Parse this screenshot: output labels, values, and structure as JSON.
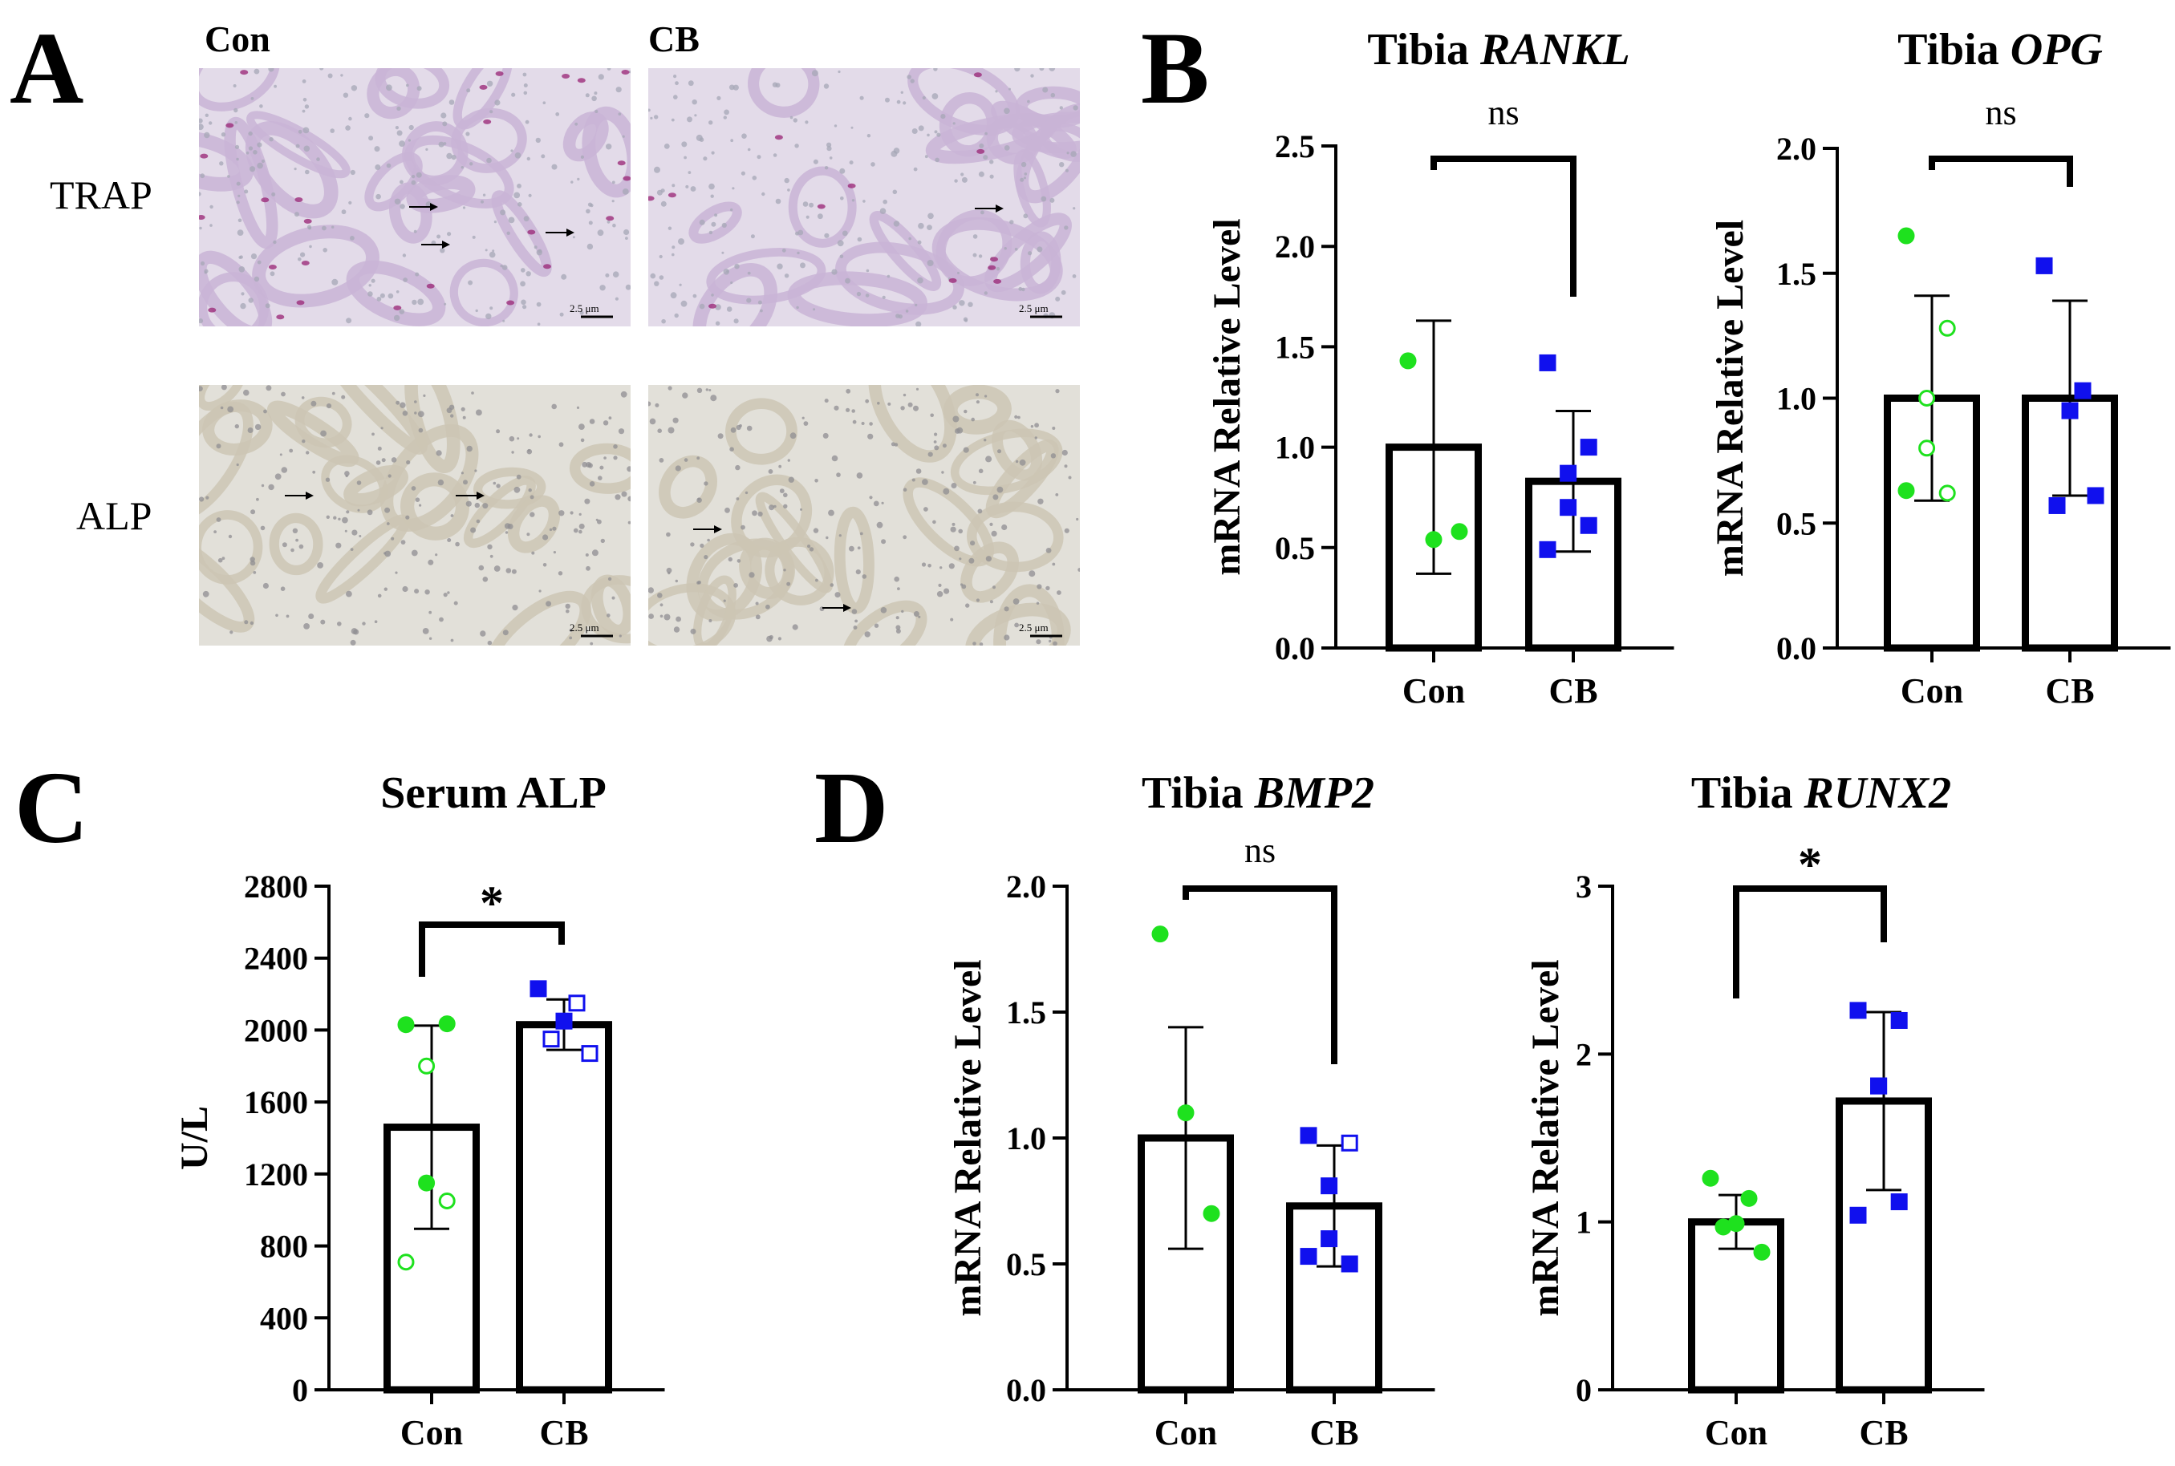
{
  "panel_labels": {
    "a": "A",
    "b": "B",
    "c": "C",
    "d": "D"
  },
  "histology": {
    "columns": [
      "Con",
      "CB"
    ],
    "rows": [
      "TRAP",
      "ALP"
    ],
    "scale_bar": "2.5 μm",
    "colors": {
      "trap_bg": "#e3dbe9",
      "trap_tissue": "#c9b4d6",
      "trap_cells": "#a5a7b6",
      "trap_osteoclast": "#9c2d7a",
      "alp_bg": "#e2e0d9",
      "alp_tissue": "#cdc6b4",
      "alp_cells": "#8f8e92"
    }
  },
  "colors": {
    "con": "#1ee11e",
    "cb": "#1010ee",
    "axis": "#000000"
  },
  "chart_data": [
    {
      "id": "rankl",
      "type": "bar",
      "title": "Tibia ",
      "title_italic": "RANKL",
      "ylabel": "mRNA Relative Level",
      "xlabel": "",
      "categories": [
        "Con",
        "CB"
      ],
      "ylim": [
        0,
        2.5
      ],
      "yticks": [
        "0.0",
        "0.5",
        "1.0",
        "1.5",
        "2.0",
        "2.5"
      ],
      "means": [
        1.0,
        0.83
      ],
      "sd": [
        0.63,
        0.35
      ],
      "points": [
        [
          {
            "y": 1.43,
            "open": false
          },
          {
            "y": 0.54,
            "open": false
          },
          {
            "y": 0.58,
            "open": false
          }
        ],
        [
          {
            "y": 1.42,
            "open": false
          },
          {
            "y": 1.0,
            "open": false
          },
          {
            "y": 0.87,
            "open": false
          },
          {
            "y": 0.7,
            "open": false
          },
          {
            "y": 0.61,
            "open": false
          },
          {
            "y": 0.49,
            "open": false
          }
        ]
      ],
      "significance": "ns"
    },
    {
      "id": "opg",
      "type": "bar",
      "title": "Tibia ",
      "title_italic": "OPG",
      "ylabel": "mRNA Relative Level",
      "xlabel": "",
      "categories": [
        "Con",
        "CB"
      ],
      "ylim": [
        0,
        2.0
      ],
      "yticks": [
        "0.0",
        "0.5",
        "1.0",
        "1.5",
        "2.0"
      ],
      "means": [
        1.0,
        1.0
      ],
      "sd": [
        0.41,
        0.39
      ],
      "points": [
        [
          {
            "y": 1.65,
            "open": false
          },
          {
            "y": 1.28,
            "open": true
          },
          {
            "y": 1.0,
            "open": true
          },
          {
            "y": 0.8,
            "open": true
          },
          {
            "y": 0.62,
            "open": true
          },
          {
            "y": 0.63,
            "open": false
          }
        ],
        [
          {
            "y": 1.53,
            "open": false
          },
          {
            "y": 1.03,
            "open": false
          },
          {
            "y": 0.95,
            "open": false
          },
          {
            "y": 0.57,
            "open": false
          },
          {
            "y": 0.61,
            "open": false
          }
        ]
      ],
      "significance": "ns"
    },
    {
      "id": "serum-alp",
      "type": "bar",
      "title": "Serum ALP",
      "title_italic": "",
      "ylabel": "U/L",
      "xlabel": "",
      "categories": [
        "Con",
        "CB"
      ],
      "ylim": [
        0,
        2800
      ],
      "yticks": [
        "0",
        "400",
        "800",
        "1200",
        "1600",
        "2000",
        "2400",
        "2800"
      ],
      "means": [
        1460,
        2030
      ],
      "sd": [
        565,
        140
      ],
      "points": [
        [
          {
            "y": 2030,
            "open": false
          },
          {
            "y": 2035,
            "open": false
          },
          {
            "y": 1800,
            "open": true
          },
          {
            "y": 1150,
            "open": false
          },
          {
            "y": 1050,
            "open": true
          },
          {
            "y": 710,
            "open": true
          }
        ],
        [
          {
            "y": 2230,
            "open": false
          },
          {
            "y": 2150,
            "open": true
          },
          {
            "y": 2050,
            "open": false
          },
          {
            "y": 1950,
            "open": true
          },
          {
            "y": 1870,
            "open": true
          }
        ]
      ],
      "significance": "*"
    },
    {
      "id": "bmp2",
      "type": "bar",
      "title": "Tibia ",
      "title_italic": "BMP2",
      "ylabel": "mRNA Relative Level",
      "xlabel": "",
      "categories": [
        "Con",
        "CB"
      ],
      "ylim": [
        0,
        2.0
      ],
      "yticks": [
        "0.0",
        "0.5",
        "1.0",
        "1.5",
        "2.0"
      ],
      "means": [
        1.0,
        0.73
      ],
      "sd": [
        0.44,
        0.24
      ],
      "points": [
        [
          {
            "y": 1.81,
            "open": false
          },
          {
            "y": 1.1,
            "open": false
          },
          {
            "y": 0.7,
            "open": false
          }
        ],
        [
          {
            "y": 1.01,
            "open": false
          },
          {
            "y": 0.98,
            "open": true
          },
          {
            "y": 0.81,
            "open": false
          },
          {
            "y": 0.6,
            "open": false
          },
          {
            "y": 0.5,
            "open": false
          },
          {
            "y": 0.53,
            "open": false
          }
        ]
      ],
      "significance": "ns"
    },
    {
      "id": "runx2",
      "type": "bar",
      "title": "Tibia ",
      "title_italic": "RUNX2",
      "ylabel": "mRNA Relative Level",
      "xlabel": "",
      "categories": [
        "Con",
        "CB"
      ],
      "ylim": [
        0,
        3
      ],
      "yticks": [
        "0",
        "1",
        "2",
        "3"
      ],
      "means": [
        1.0,
        1.72
      ],
      "sd": [
        0.16,
        0.53
      ],
      "points": [
        [
          {
            "y": 1.26,
            "open": false
          },
          {
            "y": 1.14,
            "open": false
          },
          {
            "y": 0.99,
            "open": false
          },
          {
            "y": 0.97,
            "open": false
          },
          {
            "y": 0.82,
            "open": false
          }
        ],
        [
          {
            "y": 2.26,
            "open": false
          },
          {
            "y": 2.2,
            "open": false
          },
          {
            "y": 1.81,
            "open": false
          },
          {
            "y": 1.81,
            "open": false
          },
          {
            "y": 1.12,
            "open": false
          },
          {
            "y": 1.04,
            "open": false
          }
        ]
      ],
      "significance": "*"
    }
  ]
}
